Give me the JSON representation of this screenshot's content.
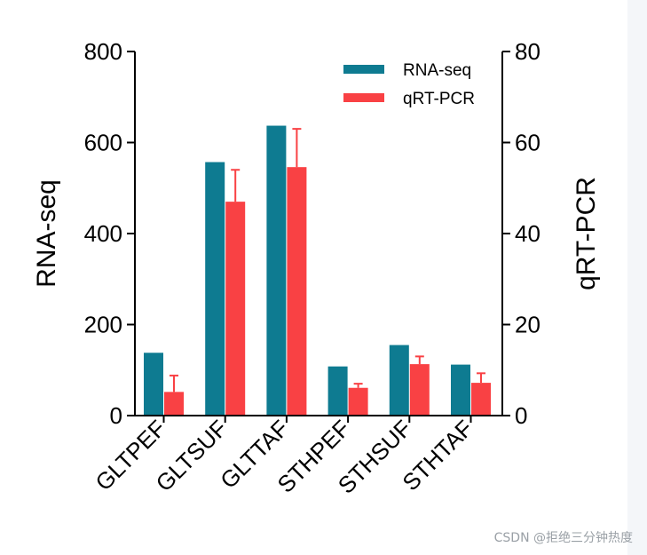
{
  "chart_data": {
    "type": "bar",
    "categories": [
      "GLTPEF",
      "GLTSUF",
      "GLTTAF",
      "STHPEF",
      "STHSUF",
      "STHTAF"
    ],
    "series": [
      {
        "name": "RNA-seq",
        "axis": "left",
        "color": "#0e7b91",
        "values": [
          138,
          557,
          637,
          108,
          155,
          112
        ],
        "errors": null
      },
      {
        "name": "qRT-PCR",
        "axis": "right",
        "color": "#f94144",
        "values": [
          5.2,
          47,
          54.6,
          6.1,
          11.3,
          7.2
        ],
        "errors": [
          3.6,
          7,
          8.4,
          0.9,
          1.7,
          2.1
        ]
      }
    ],
    "ylabel": "RNA-seq",
    "y2label": "qRT-PCR",
    "ylim": [
      0,
      800
    ],
    "y2lim": [
      0,
      80
    ],
    "yticks": [
      0,
      200,
      400,
      600,
      800
    ],
    "y2ticks": [
      0,
      20,
      40,
      60,
      80
    ],
    "legend_position": "top-right"
  },
  "watermark": "CSDN @拒绝三分钟热度"
}
